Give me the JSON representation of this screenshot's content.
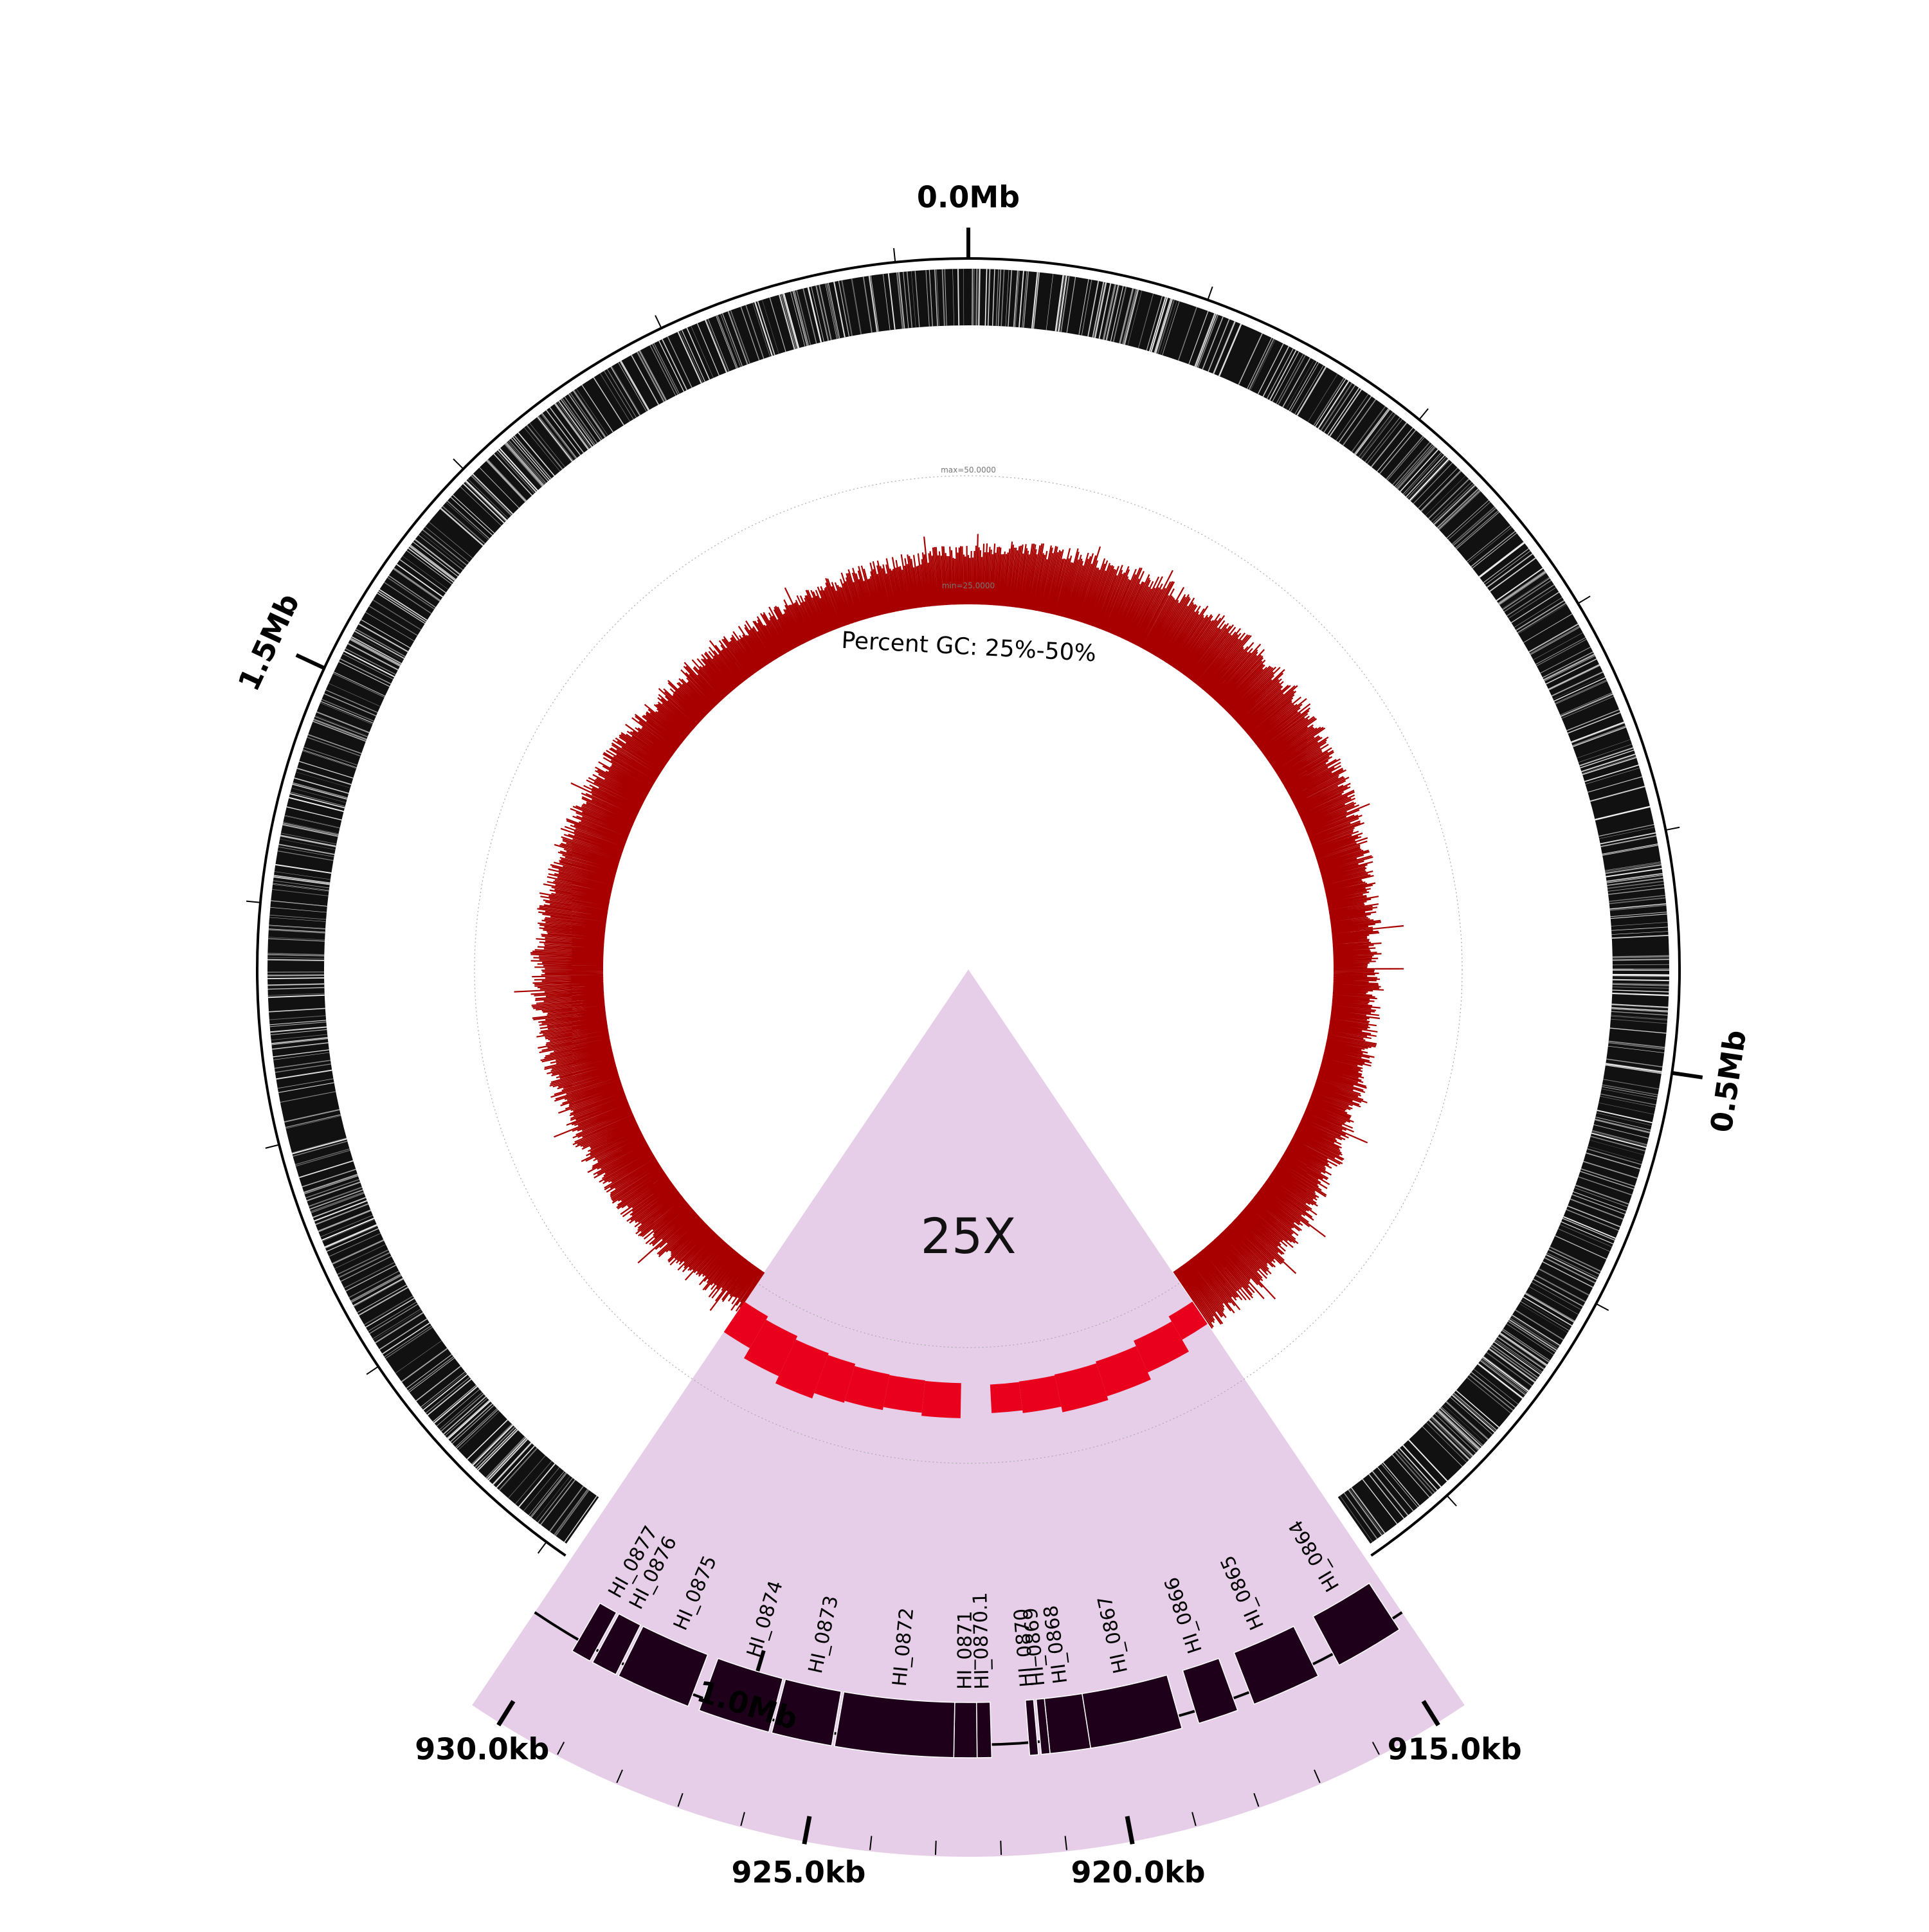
{
  "chart_data": {
    "type": "circular-genome",
    "genome_ticks": [
      {
        "label": "0.0Mb",
        "mb": 0.0
      },
      {
        "label": "0.5Mb",
        "mb": 0.5
      },
      {
        "label": "1.0Mb",
        "mb": 1.0
      },
      {
        "label": "1.5Mb",
        "mb": 1.5
      }
    ],
    "gc_track": {
      "label": "Percent GC: 25%-50%",
      "max_label": "max=50.0000",
      "min_label": "min=25.0000",
      "range": [
        25,
        50
      ],
      "color": "#a80000",
      "zoom_color": "#e8001c"
    },
    "zoom": {
      "label": "25X",
      "color": "#e6cde8",
      "range_kb": [
        914.5,
        930.5
      ],
      "ticks": [
        {
          "label": "915.0kb",
          "kb": 915.0
        },
        {
          "label": "920.0kb",
          "kb": 920.0
        },
        {
          "label": "925.0kb",
          "kb": 925.0
        },
        {
          "label": "930.0kb",
          "kb": 930.0
        }
      ]
    },
    "genes": [
      {
        "name": "HI_0864",
        "start_kb": 914.7,
        "end_kb": 915.9
      },
      {
        "name": "HI_0865",
        "start_kb": 916.3,
        "end_kb": 917.5
      },
      {
        "name": "HI_0866",
        "start_kb": 917.8,
        "end_kb": 918.5
      },
      {
        "name": "HI_0867",
        "start_kb": 918.8,
        "end_kb": 920.4
      },
      {
        "name": "HI_0868",
        "start_kb": 920.4,
        "end_kb": 921.1
      },
      {
        "name": "HI_0869",
        "start_kb": 921.1,
        "end_kb": 921.25
      },
      {
        "name": "HI_0870",
        "start_kb": 921.3,
        "end_kb": 921.45
      },
      {
        "name": "HI_0870.1",
        "start_kb": 922.1,
        "end_kb": 922.35
      },
      {
        "name": "HI_0871",
        "start_kb": 922.35,
        "end_kb": 922.75
      },
      {
        "name": "HI_0872",
        "start_kb": 922.75,
        "end_kb": 924.8
      },
      {
        "name": "HI_0873",
        "start_kb": 924.85,
        "end_kb": 925.9
      },
      {
        "name": "HI_0874",
        "start_kb": 925.95,
        "end_kb": 927.2
      },
      {
        "name": "HI_0875",
        "start_kb": 927.4,
        "end_kb": 928.7
      },
      {
        "name": "HI_0876",
        "start_kb": 928.75,
        "end_kb": 929.2
      },
      {
        "name": "HI_0877",
        "start_kb": 929.25,
        "end_kb": 929.6
      }
    ],
    "colors": {
      "gene_dark": "#1e001a",
      "ring": "#000000",
      "background": "#ffffff"
    }
  }
}
